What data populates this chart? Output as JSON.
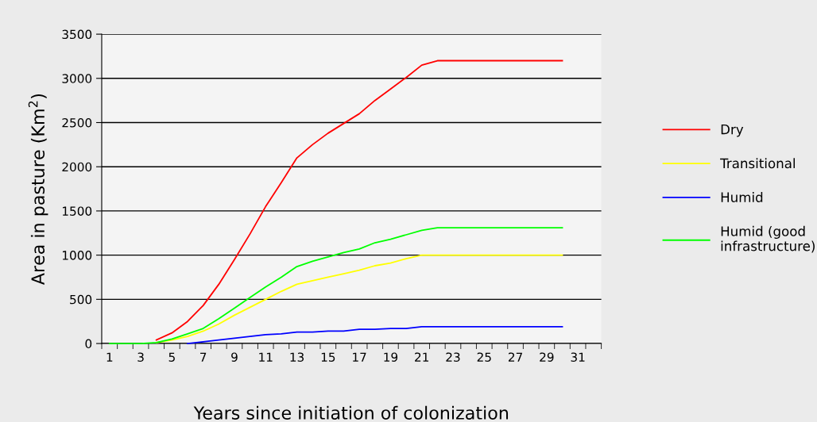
{
  "chart_data": {
    "type": "line",
    "xlabel": "Years since initiation of colonization",
    "ylabel": "Area in pasture (Km$^{2}$)",
    "categories": [
      "1",
      null,
      "3",
      null,
      "5",
      null,
      "7",
      null,
      "9",
      null,
      "11",
      null,
      "13",
      null,
      "15",
      null,
      "17",
      null,
      "19",
      null,
      "21",
      null,
      "23",
      null,
      "25",
      null,
      "27",
      null,
      "29",
      null,
      "31",
      null
    ],
    "series": [
      {
        "name": "Dry",
        "color": "#ff0000",
        "values": [
          null,
          null,
          null,
          40,
          120,
          250,
          430,
          670,
          950,
          1240,
          1550,
          1820,
          2100,
          2250,
          2380,
          2490,
          2600,
          2750,
          2880,
          3010,
          3150,
          3200,
          3200,
          3200,
          3200,
          3200,
          3200,
          3200,
          3200,
          3200,
          null,
          null
        ]
      },
      {
        "name": "Transitional",
        "color": "#ffff00",
        "values": [
          null,
          null,
          null,
          10,
          40,
          80,
          140,
          220,
          320,
          410,
          500,
          590,
          670,
          710,
          750,
          790,
          830,
          880,
          910,
          960,
          1000,
          1000,
          1000,
          1000,
          1000,
          1000,
          1000,
          1000,
          1000,
          1000,
          null,
          null
        ]
      },
      {
        "name": "Humid",
        "color": "#0000ff",
        "values": [
          null,
          null,
          null,
          null,
          null,
          0,
          20,
          40,
          60,
          80,
          100,
          110,
          130,
          130,
          140,
          140,
          160,
          160,
          170,
          170,
          190,
          190,
          190,
          190,
          190,
          190,
          190,
          190,
          190,
          190,
          null,
          null
        ]
      },
      {
        "name": "Humid (good\ninfrastructure)",
        "color": "#00ff00",
        "values": [
          0,
          0,
          0,
          10,
          50,
          110,
          170,
          280,
          400,
          520,
          640,
          750,
          870,
          930,
          980,
          1030,
          1070,
          1140,
          1180,
          1230,
          1280,
          1310,
          1310,
          1310,
          1310,
          1310,
          1310,
          1310,
          1310,
          1310,
          null,
          null
        ]
      }
    ],
    "ylim": [
      0,
      3500
    ],
    "yticks": [
      0,
      500,
      1000,
      1500,
      2000,
      2500,
      3000,
      3500
    ],
    "grid": "y",
    "legend": "right",
    "marker": "none",
    "line_style": "solid"
  }
}
